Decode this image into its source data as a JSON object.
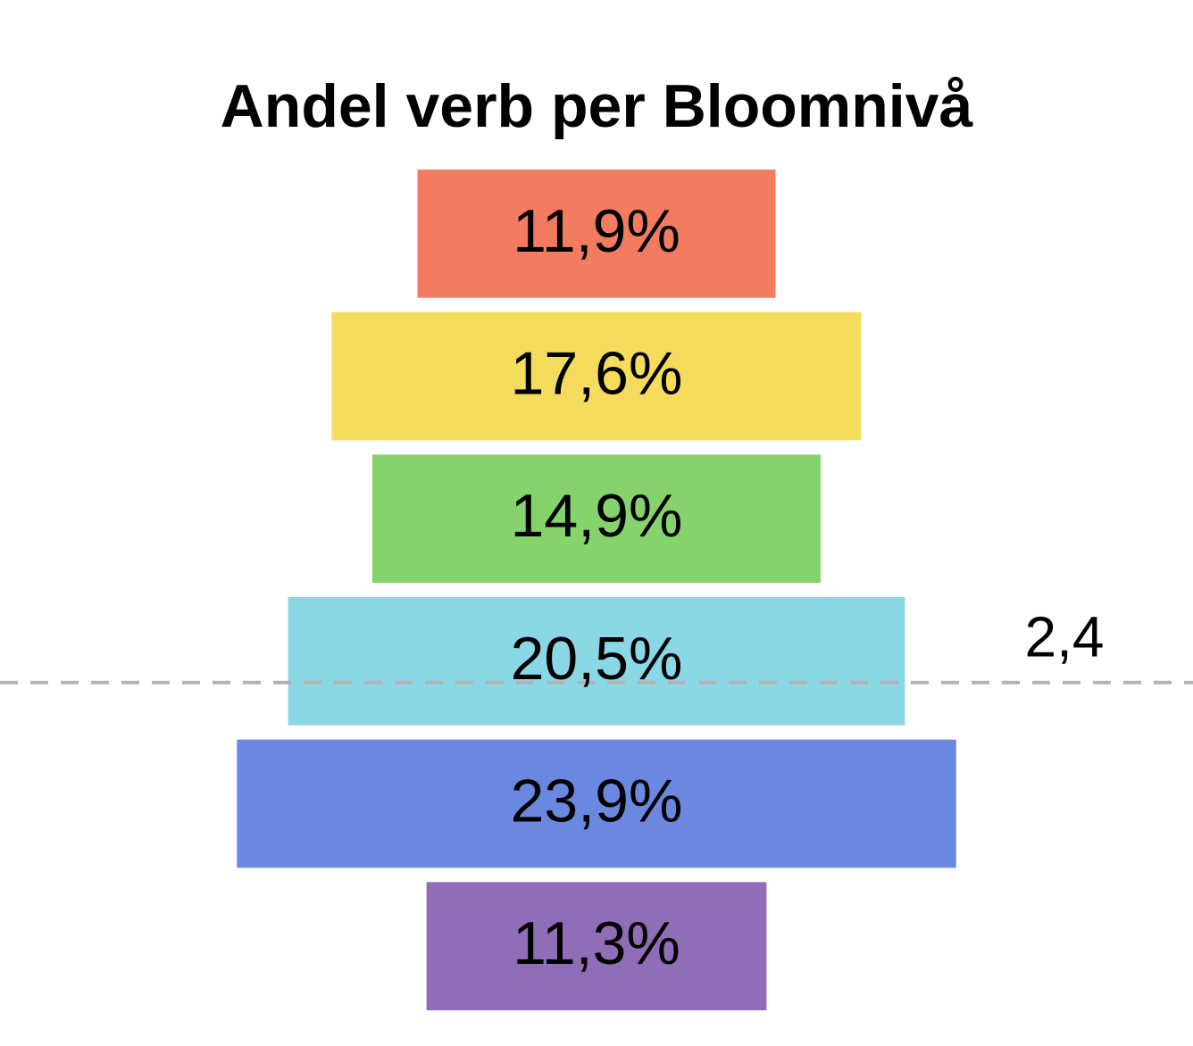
{
  "chart_data": {
    "type": "bar",
    "orientation": "centered",
    "title": "Andel verb per Bloomnivå",
    "values": [
      11.9,
      17.6,
      14.9,
      20.5,
      23.9,
      11.3
    ],
    "value_labels": [
      "11,9%",
      "17,6%",
      "14,9%",
      "20,5%",
      "23,9%",
      "11,3%"
    ],
    "colors": [
      "#f27b60",
      "#f5dc5d",
      "#86d36e",
      "#8ad7e6",
      "#6a88e0",
      "#906db7"
    ],
    "ylim": [
      0,
      6
    ],
    "reference_line": {
      "value": 2.4,
      "label": "2,4",
      "color": "#b3b3b3",
      "dashed": true
    }
  }
}
